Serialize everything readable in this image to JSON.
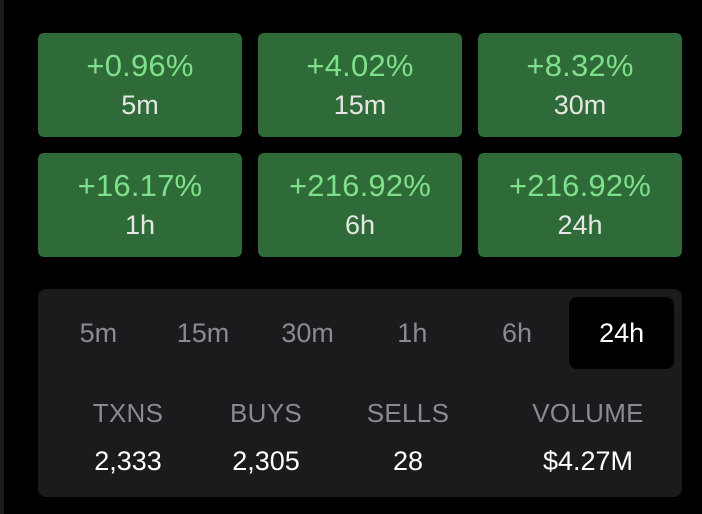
{
  "price_changes": [
    {
      "percent": "+0.96%",
      "period": "5m"
    },
    {
      "percent": "+4.02%",
      "period": "15m"
    },
    {
      "percent": "+8.32%",
      "period": "30m"
    },
    {
      "percent": "+16.17%",
      "period": "1h"
    },
    {
      "percent": "+216.92%",
      "period": "6h"
    },
    {
      "percent": "+216.92%",
      "period": "24h"
    }
  ],
  "timeframe_tabs": {
    "items": [
      "5m",
      "15m",
      "30m",
      "1h",
      "6h",
      "24h"
    ],
    "selected": "24h"
  },
  "stats": {
    "txns": {
      "label": "TXNS",
      "value": "2,333"
    },
    "buys": {
      "label": "BUYS",
      "value": "2,305"
    },
    "sells": {
      "label": "SELLS",
      "value": "28"
    },
    "volume": {
      "label": "VOLUME",
      "value": "$4.27M"
    }
  },
  "colors": {
    "card_background": "#2f6b38",
    "positive_text": "#7ee08a",
    "panel_background": "#1b1b1e",
    "active_tab_background": "#000000"
  }
}
